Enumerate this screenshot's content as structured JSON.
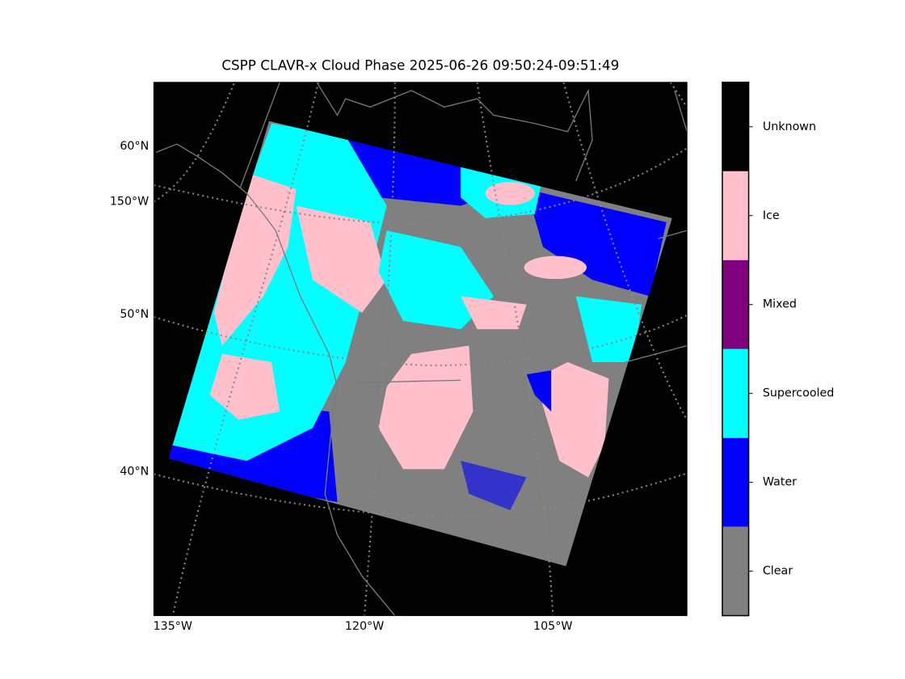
{
  "title": "CSPP CLAVR-x Cloud Phase 2025-06-26 09:50:24-09:51:49",
  "lat_labels": [
    "60°N",
    "150°W",
    "50°N",
    "40°N"
  ],
  "lon_labels": [
    "135°W",
    "120°W",
    "105°W"
  ],
  "colorbar": [
    {
      "name": "Clear",
      "color": "#808080"
    },
    {
      "name": "Water",
      "color": "#0000ff"
    },
    {
      "name": "Supercooled",
      "color": "#00ffff"
    },
    {
      "name": "Mixed",
      "color": "#800080"
    },
    {
      "name": "Ice",
      "color": "#ffc0cb"
    },
    {
      "name": "Unknown",
      "color": "#000000"
    }
  ]
}
